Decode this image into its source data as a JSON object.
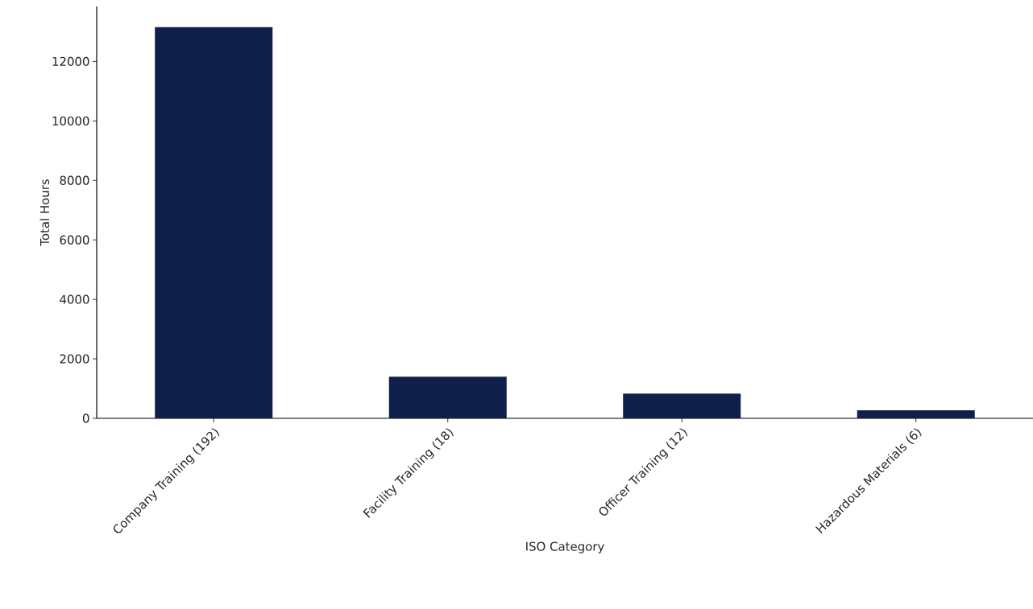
{
  "chart_data": {
    "type": "bar",
    "xlabel": "ISO Category",
    "ylabel": "Total Hours",
    "categories": [
      "Company Training (192)",
      "Facility Training (18)",
      "Officer Training (12)",
      "Hazardous Materials (6)"
    ],
    "values": [
      13150,
      1400,
      830,
      270
    ],
    "color": "#101f4a",
    "ylim": [
      0,
      13850
    ],
    "yticks": [
      0,
      2000,
      4000,
      6000,
      8000,
      10000,
      12000
    ],
    "grid": false
  }
}
